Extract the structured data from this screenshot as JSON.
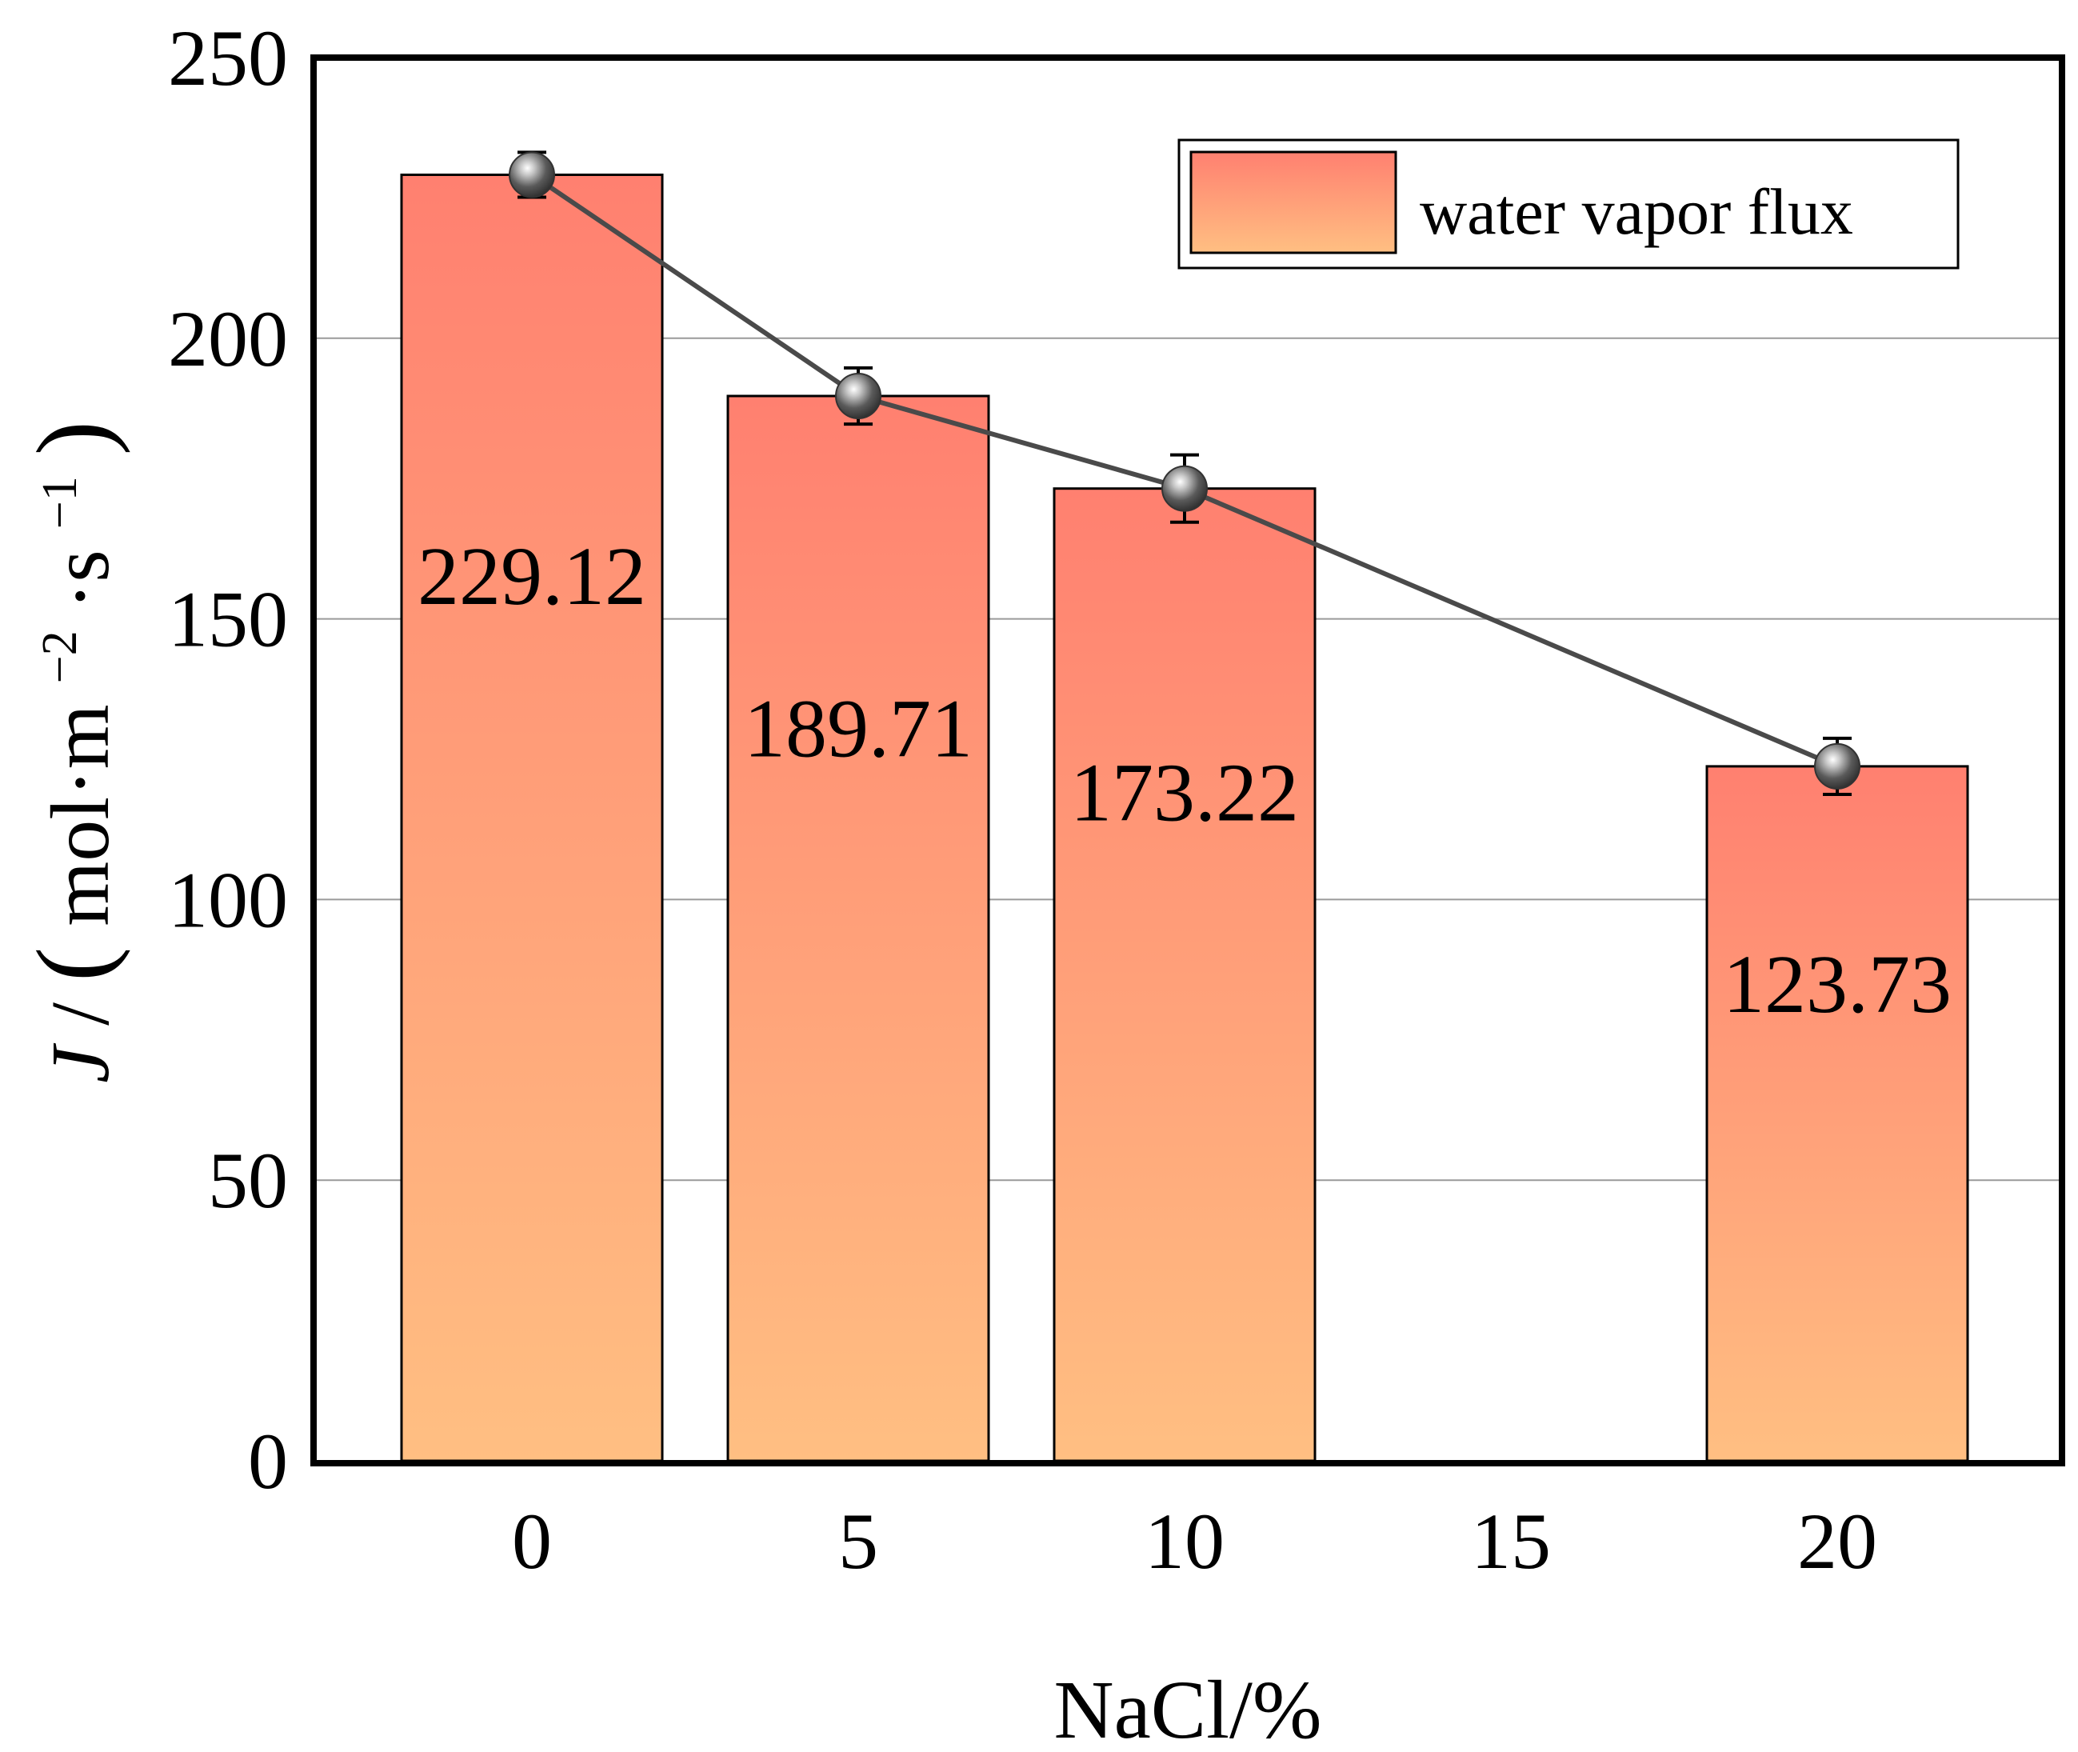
{
  "chart_data": {
    "type": "bar",
    "title": "",
    "xlabel": "NaCl/%",
    "ylabel": {
      "italic": "J",
      "prefix": "/",
      "open_paren": "(",
      "unit_main": "mol·m",
      "sup1": "−2",
      "unit_mid": "·s",
      "sup2": "−1",
      "close_paren": ")"
    },
    "categories": [
      "0",
      "5",
      "10",
      "15",
      "20"
    ],
    "series": [
      {
        "name": "water vapor flux",
        "values": [
          229.12,
          189.71,
          173.22,
          null,
          123.73
        ],
        "labels": [
          "229.12",
          "189.71",
          "173.22",
          "",
          "123.73"
        ],
        "error": [
          4,
          5,
          6,
          null,
          5
        ]
      }
    ],
    "trend_line": true,
    "ylim": [
      0,
      250
    ],
    "yticks": [
      "0",
      "50",
      "100",
      "150",
      "200",
      "250"
    ],
    "ytick_values": [
      0,
      50,
      100,
      150,
      200,
      250
    ],
    "grid": "horizontal",
    "legend": {
      "position": "top-right",
      "entries": [
        "water vapor flux"
      ]
    },
    "colors": {
      "bar_top": "#ff8070",
      "bar_bottom": "#ffbf82",
      "trend": "#4a4a4a",
      "marker": "#555555",
      "grid": "#9a9a9a"
    }
  }
}
